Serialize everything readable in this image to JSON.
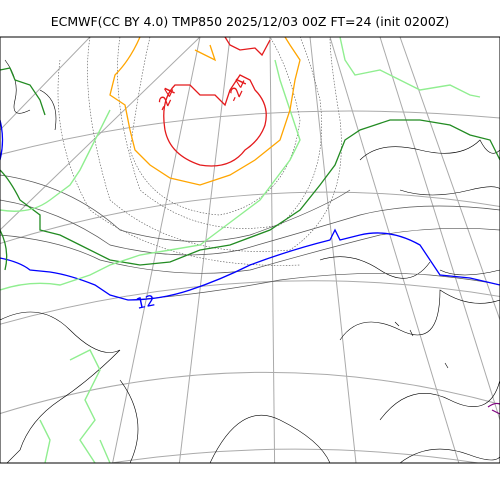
{
  "title": "ECMWF(CC BY 4.0) TMP850 2025/12/03 00Z FT=24 (init 0200Z)",
  "contour_labels": {
    "minus24_a": "-24",
    "minus24_b": "-24",
    "plus12": "12"
  },
  "colors": {
    "coastline": "#000000",
    "graticule": "#aaaaaa",
    "isotherm_thin": "#555555",
    "isotherm_minus24": "#e41a1c",
    "isotherm_minus18": "#ffa500",
    "isotherm_minus12": "#90ee90",
    "isotherm_minus6": "#228b22",
    "isotherm_0": "#666666",
    "isotherm_12": "#0000ff",
    "isotherm_18": "#800080"
  }
}
